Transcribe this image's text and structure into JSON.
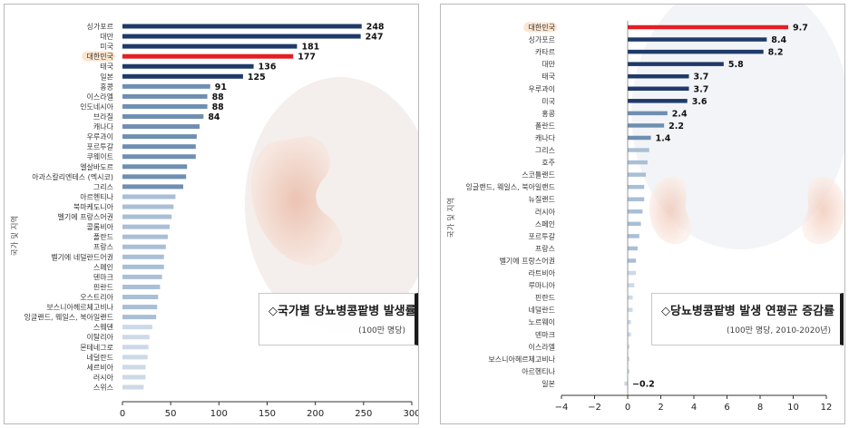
{
  "colors": {
    "dark": "#1f3a6a",
    "mid": "#6f8fb2",
    "light": "#a9bfd6",
    "lighter": "#cdd9e6",
    "highlight": "#e31e24",
    "axis": "#333333"
  },
  "chart_data": [
    {
      "type": "bar",
      "orientation": "horizontal",
      "title": "◇국가별 당뇨병콩팥병 발생률",
      "subtitle": "(100만 명당)",
      "ylabel": "국가 및 지역",
      "xlim": [
        0,
        300
      ],
      "xticks": [
        "0",
        "50",
        "100",
        "150",
        "200",
        "250",
        "300"
      ],
      "grid": false,
      "highlight": "대한민국",
      "categories": [
        "싱가포르",
        "대만",
        "미국",
        "대한민국",
        "태국",
        "일본",
        "홍콩",
        "이스라엘",
        "인도네시아",
        "브라질",
        "캐나다",
        "우루과이",
        "포르투갈",
        "쿠웨이트",
        "엘살바도르",
        "아과스칼리엔테스 (멕시코)",
        "그리스",
        "아르헨티나",
        "북마케도니아",
        "벨기에 프랑스어권",
        "콜롬비아",
        "폴란드",
        "프랑스",
        "벨기에 네덜란드어권",
        "스페인",
        "덴마크",
        "핀란드",
        "오스트리아",
        "보스니아헤르체고비나",
        "잉글랜드, 웨일스, 북아일랜드",
        "스웨덴",
        "이탈리아",
        "몬테네그로",
        "네덜란드",
        "세르비아",
        "러시아",
        "스위스"
      ],
      "values": [
        248,
        247,
        181,
        177,
        136,
        125,
        91,
        88,
        88,
        84,
        80,
        77,
        76,
        76,
        67,
        66,
        63,
        55,
        53,
        51,
        49,
        47,
        45,
        43,
        43,
        41,
        39,
        37,
        36,
        35,
        31,
        28,
        27,
        26,
        24,
        24,
        22
      ],
      "labels": [
        "248",
        "247",
        "181",
        "177",
        "136",
        "125",
        "91",
        "88",
        "88",
        "84",
        "",
        "",
        "",
        "",
        "",
        "",
        "",
        "",
        "",
        "",
        "",
        "",
        "",
        "",
        "",
        "",
        "",
        "",
        "",
        "",
        "",
        "",
        "",
        "",
        "",
        "",
        ""
      ]
    },
    {
      "type": "bar",
      "orientation": "horizontal",
      "title": "◇당뇨병콩팥병 발생 연평균 증감률",
      "subtitle": "(100만 명당, 2010-2020년)",
      "ylabel": "국가 및 지역",
      "xlim": [
        -4,
        12
      ],
      "xticks": [
        "−4",
        "−2",
        "0",
        "2",
        "4",
        "6",
        "8",
        "10",
        "12"
      ],
      "grid": false,
      "highlight": "대한민국",
      "categories": [
        "대한민국",
        "싱가포르",
        "카타르",
        "대만",
        "태국",
        "우루과이",
        "미국",
        "홍콩",
        "폴란드",
        "캐나다",
        "그리스",
        "호주",
        "스코틀랜드",
        "잉글랜드, 웨일스, 북아일랜드",
        "뉴질랜드",
        "러시아",
        "스페인",
        "포르투갈",
        "프랑스",
        "벨기에 프랑스어권",
        "라트비아",
        "루마니아",
        "핀란드",
        "네덜란드",
        "노르웨이",
        "덴마크",
        "이스라엘",
        "보스니아헤르체고비나",
        "아르헨티나",
        "일본"
      ],
      "values": [
        9.7,
        8.4,
        8.2,
        5.8,
        3.7,
        3.7,
        3.6,
        2.4,
        2.2,
        1.4,
        1.3,
        1.2,
        1.1,
        1.0,
        1.0,
        0.9,
        0.8,
        0.7,
        0.6,
        0.5,
        0.5,
        0.4,
        0.3,
        0.3,
        0.2,
        0.2,
        0.1,
        0.1,
        0.1,
        -0.2
      ],
      "labels": [
        "9.7",
        "8.4",
        "8.2",
        "5.8",
        "3.7",
        "3.7",
        "3.6",
        "2.4",
        "2.2",
        "1.4",
        "",
        "",
        "",
        "",
        "",
        "",
        "",
        "",
        "",
        "",
        "",
        "",
        "",
        "",
        "",
        "",
        "",
        "",
        "",
        "−0.2"
      ]
    }
  ]
}
